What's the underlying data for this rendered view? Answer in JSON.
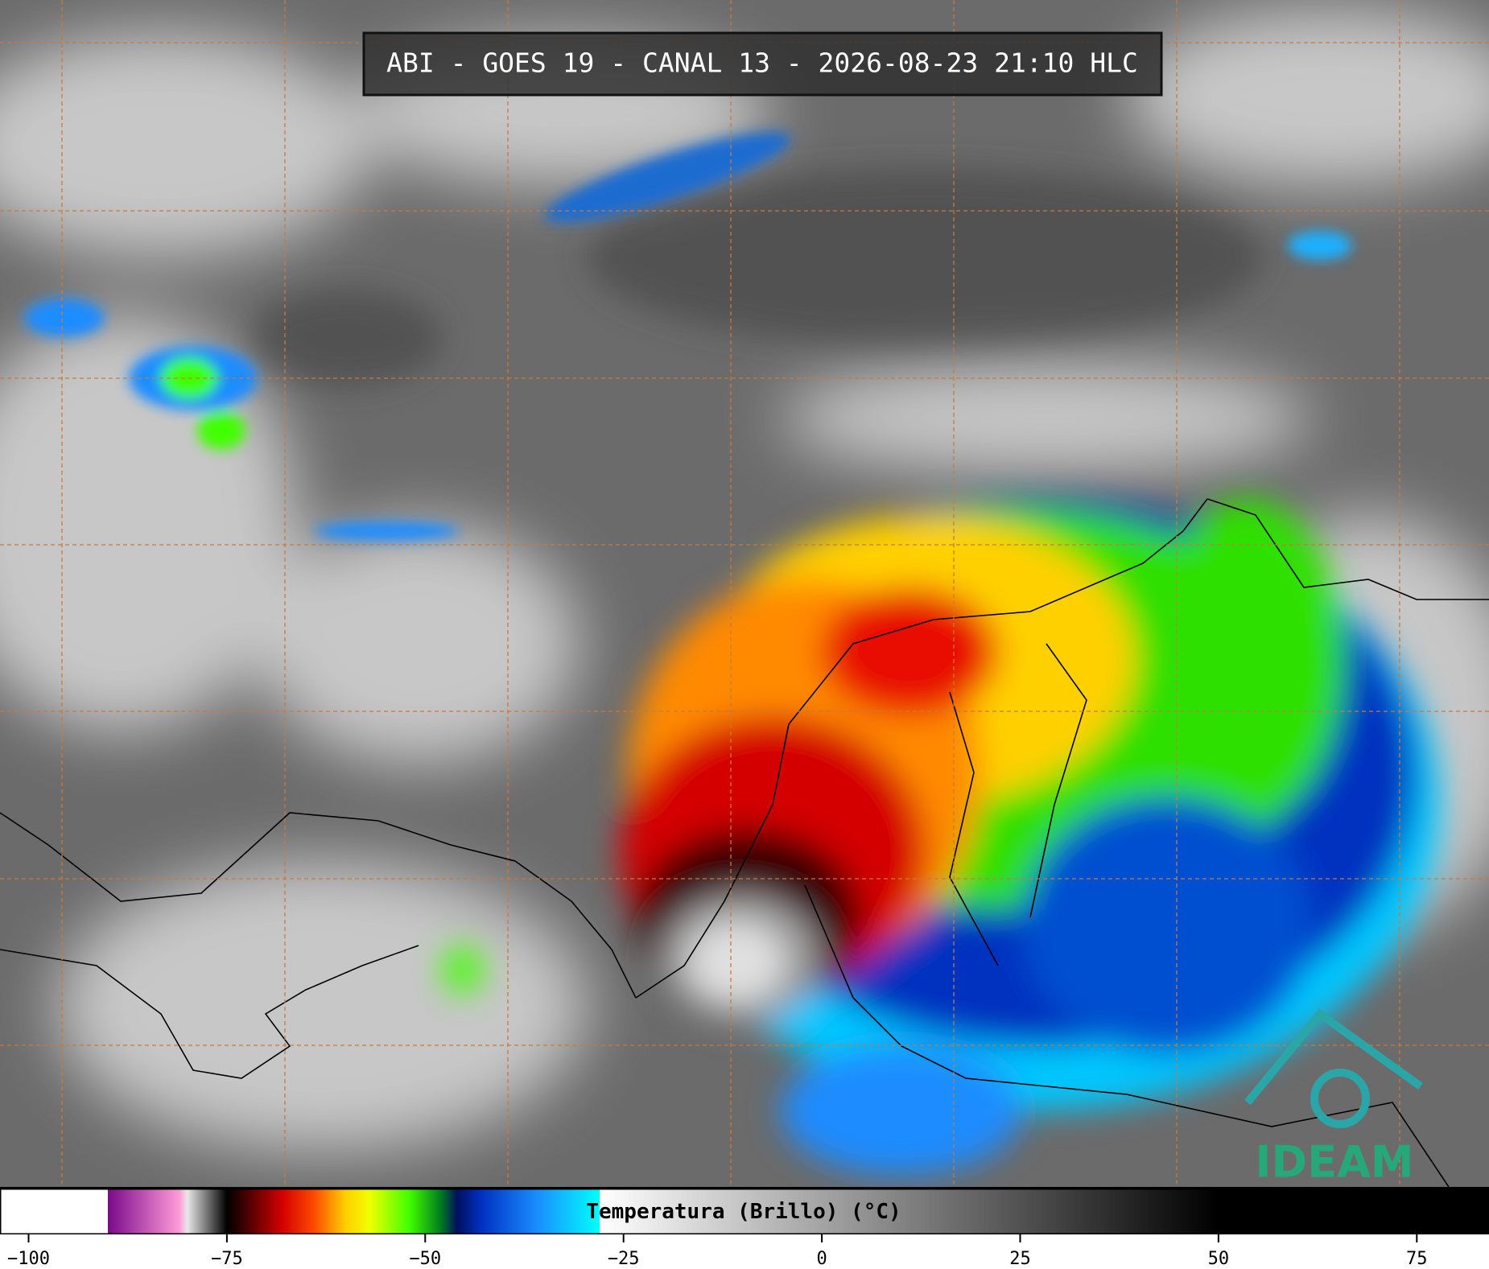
{
  "chart_data": {
    "type": "colorbar",
    "title": "ABI - GOES 19 - CANAL 13 - 2026-08-23 21:10 HLC",
    "colorbar_label": "Temperatura (Brillo) (°C)",
    "xlim": [
      -103.6,
      84.1
    ],
    "xticks": [
      {
        "value": -100,
        "label": "−100"
      },
      {
        "value": -75,
        "label": "−75"
      },
      {
        "value": -50,
        "label": "−50"
      },
      {
        "value": -25,
        "label": "−25"
      },
      0,
      25,
      50,
      75
    ],
    "colorscale": [
      {
        "value": -90,
        "color": "#ffffff"
      },
      {
        "value": -90,
        "color": "#7a0a8a"
      },
      {
        "value": -81,
        "color": "#ff9ad8"
      },
      {
        "value": -80,
        "color": "#e8e8e8"
      },
      {
        "value": -76,
        "color": "#303030"
      },
      {
        "value": -75,
        "color": "#000000"
      },
      {
        "value": -73,
        "color": "#3a0000"
      },
      {
        "value": -68,
        "color": "#d40000"
      },
      {
        "value": -64,
        "color": "#ff4a00"
      },
      {
        "value": -60,
        "color": "#ffd000"
      },
      {
        "value": -57,
        "color": "#f0ff00"
      },
      {
        "value": -52,
        "color": "#40ff00"
      },
      {
        "value": -48,
        "color": "#007a20"
      },
      {
        "value": -46,
        "color": "#001060"
      },
      {
        "value": -43,
        "color": "#0030c0"
      },
      {
        "value": -36,
        "color": "#1a8cff"
      },
      {
        "value": -28,
        "color": "#00ffff"
      },
      {
        "value": -28,
        "color": "#ffffff"
      },
      {
        "value": 50,
        "color": "#000000"
      }
    ],
    "logo": "IDEAM"
  }
}
